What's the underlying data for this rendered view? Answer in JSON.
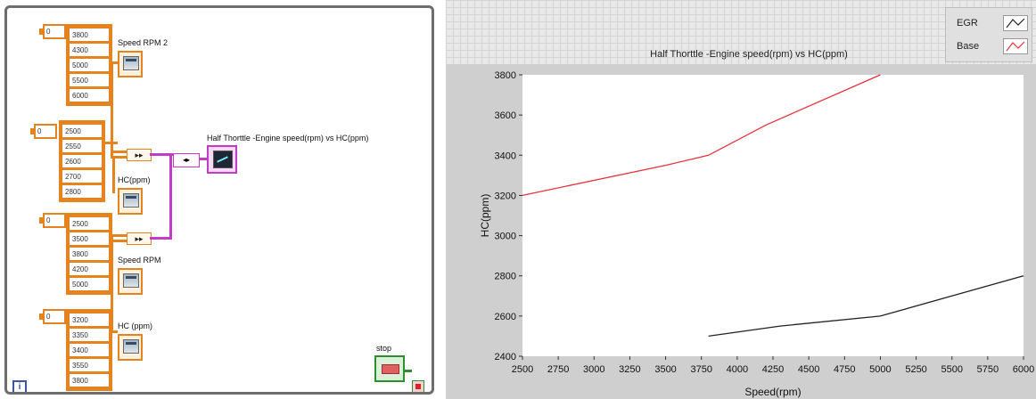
{
  "block_diagram": {
    "series_blocks": [
      {
        "index": "0",
        "values": [
          "3800",
          "4300",
          "5000",
          "5500",
          "6000"
        ],
        "label": "Speed RPM 2"
      },
      {
        "index": "0",
        "values": [
          "2500",
          "2550",
          "2600",
          "2700",
          "2800"
        ],
        "label": "HC(ppm)"
      },
      {
        "index": "0",
        "values": [
          "2500",
          "3500",
          "3800",
          "4200",
          "5000"
        ],
        "label": "Speed RPM"
      },
      {
        "index": "0",
        "values": [
          "3200",
          "3350",
          "3400",
          "3550",
          "3800"
        ],
        "label": "HC (ppm)"
      }
    ],
    "graph_label": "Half Thorttle -Engine speed(rpm)  vs HC(ppm)",
    "stop_label": "stop",
    "loop_counter": "i"
  },
  "chart_data": {
    "type": "line",
    "title": "Half Thorttle -Engine speed(rpm)  vs HC(ppm)",
    "xlabel": "Speed(rpm)",
    "ylabel": "HC(ppm)",
    "xlim": [
      2500,
      6000
    ],
    "ylim": [
      2400,
      3800
    ],
    "xticks": [
      2500,
      2750,
      3000,
      3250,
      3500,
      3750,
      4000,
      4250,
      4500,
      4750,
      5000,
      5250,
      5500,
      5750,
      6000
    ],
    "yticks": [
      2400,
      2600,
      2800,
      3000,
      3200,
      3400,
      3600,
      3800
    ],
    "legend_position": "top-right",
    "series": [
      {
        "name": "EGR",
        "color": "#222222",
        "x": [
          3800,
          4300,
          5000,
          5500,
          6000
        ],
        "y": [
          2500,
          2550,
          2600,
          2700,
          2800
        ]
      },
      {
        "name": "Base",
        "color": "#e8323c",
        "x": [
          2500,
          3500,
          3800,
          4200,
          5000
        ],
        "y": [
          3200,
          3350,
          3400,
          3550,
          3800
        ]
      }
    ]
  }
}
